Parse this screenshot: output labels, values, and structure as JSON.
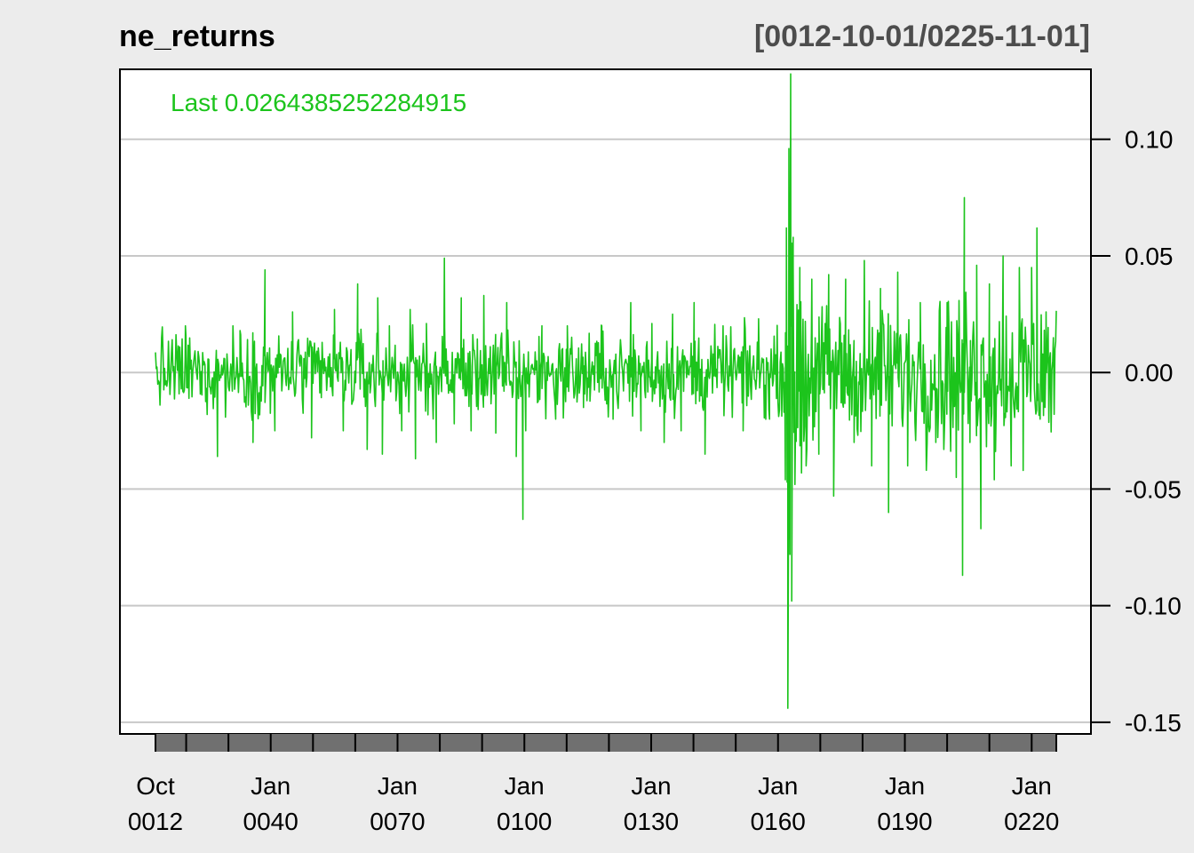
{
  "chart_data": {
    "type": "line",
    "title": "ne_returns",
    "date_range": "[0012-10-01/0225-11-01]",
    "last_label": "Last 0.0264385252284915",
    "series": [
      {
        "name": "ne_returns",
        "color": "#1cc41c"
      }
    ],
    "start_date": "0012-10-01",
    "end_date": "0225-11-01",
    "ylim": [
      -0.155,
      0.13
    ],
    "y_ticks": [
      {
        "value": 0.1,
        "label": "0.10"
      },
      {
        "value": 0.05,
        "label": "0.05"
      },
      {
        "value": 0.0,
        "label": "0.00"
      },
      {
        "value": -0.05,
        "label": "-0.05"
      },
      {
        "value": -0.1,
        "label": "-0.10"
      },
      {
        "value": -0.15,
        "label": "-0.15"
      }
    ],
    "x_ticks": [
      {
        "date": "0012-10-01",
        "line1": "Oct",
        "line2": "0012"
      },
      {
        "date": "0040-01-01",
        "line1": "Jan",
        "line2": "0040"
      },
      {
        "date": "0070-01-01",
        "line1": "Jan",
        "line2": "0070"
      },
      {
        "date": "0100-01-01",
        "line1": "Jan",
        "line2": "0100"
      },
      {
        "date": "0130-01-01",
        "line1": "Jan",
        "line2": "0130"
      },
      {
        "date": "0160-01-01",
        "line1": "Jan",
        "line2": "0160"
      },
      {
        "date": "0190-01-01",
        "line1": "Jan",
        "line2": "0190"
      },
      {
        "date": "0220-01-01",
        "line1": "Jan",
        "line2": "0220"
      }
    ],
    "spikes": [
      {
        "date": "0019-11-01",
        "value": 0.02
      },
      {
        "date": "0027-06-01",
        "value": -0.036
      },
      {
        "date": "0031-02-01",
        "value": 0.02
      },
      {
        "date": "0032-10-01",
        "value": 0.018
      },
      {
        "date": "0035-11-01",
        "value": -0.03
      },
      {
        "date": "0038-09-01",
        "value": 0.044
      },
      {
        "date": "0041-01-01",
        "value": -0.025
      },
      {
        "date": "0045-03-01",
        "value": 0.026
      },
      {
        "date": "0049-09-01",
        "value": -0.028
      },
      {
        "date": "0055-02-01",
        "value": 0.027
      },
      {
        "date": "0057-03-01",
        "value": -0.025
      },
      {
        "date": "0060-08-01",
        "value": 0.038
      },
      {
        "date": "0062-11-01",
        "value": -0.033
      },
      {
        "date": "0065-05-01",
        "value": 0.032
      },
      {
        "date": "0066-06-01",
        "value": -0.035
      },
      {
        "date": "0068-02-01",
        "value": 0.02
      },
      {
        "date": "0071-01-01",
        "value": -0.025
      },
      {
        "date": "0073-01-01",
        "value": 0.027
      },
      {
        "date": "0074-04-01",
        "value": -0.037
      },
      {
        "date": "0076-11-01",
        "value": 0.021
      },
      {
        "date": "0079-03-01",
        "value": -0.03
      },
      {
        "date": "0081-02-01",
        "value": 0.049
      },
      {
        "date": "0083-06-01",
        "value": -0.022
      },
      {
        "date": "0085-02-01",
        "value": 0.032
      },
      {
        "date": "0087-06-01",
        "value": -0.025
      },
      {
        "date": "0090-06-01",
        "value": 0.033
      },
      {
        "date": "0093-04-01",
        "value": -0.026
      },
      {
        "date": "0095-11-01",
        "value": 0.03
      },
      {
        "date": "0098-02-01",
        "value": -0.036
      },
      {
        "date": "0099-09-01",
        "value": -0.063
      },
      {
        "date": "0100-05-01",
        "value": -0.025
      },
      {
        "date": "0104-03-01",
        "value": 0.02
      },
      {
        "date": "0107-06-01",
        "value": -0.02
      },
      {
        "date": "0110-03-01",
        "value": 0.02
      },
      {
        "date": "0114-01-01",
        "value": -0.015
      },
      {
        "date": "0118-05-01",
        "value": 0.02
      },
      {
        "date": "0121-01-01",
        "value": -0.02
      },
      {
        "date": "0125-03-01",
        "value": 0.03
      },
      {
        "date": "0127-08-01",
        "value": -0.025
      },
      {
        "date": "0130-03-01",
        "value": 0.021
      },
      {
        "date": "0133-02-01",
        "value": -0.03
      },
      {
        "date": "0135-02-01",
        "value": 0.025
      },
      {
        "date": "0137-02-01",
        "value": -0.025
      },
      {
        "date": "0140-03-01",
        "value": 0.03
      },
      {
        "date": "0142-10-01",
        "value": -0.035
      },
      {
        "date": "0147-01-01",
        "value": 0.02
      },
      {
        "date": "0151-10-01",
        "value": -0.025
      },
      {
        "date": "0155-06-01",
        "value": 0.023
      },
      {
        "date": "0158-01-01",
        "value": -0.02
      },
      {
        "date": "0161-10-01",
        "value": -0.046
      },
      {
        "date": "0162-01-01",
        "value": 0.062
      },
      {
        "date": "0162-05-01",
        "value": -0.144
      },
      {
        "date": "0162-08-01",
        "value": 0.096
      },
      {
        "date": "0162-11-01",
        "value": -0.078
      },
      {
        "date": "0163-01-01",
        "value": 0.128
      },
      {
        "date": "0163-04-01",
        "value": -0.098
      },
      {
        "date": "0163-08-01",
        "value": 0.058
      },
      {
        "date": "0164-01-01",
        "value": -0.048
      },
      {
        "date": "0165-03-01",
        "value": 0.045
      },
      {
        "date": "0166-09-01",
        "value": -0.04
      },
      {
        "date": "0168-01-01",
        "value": 0.04
      },
      {
        "date": "0169-09-01",
        "value": -0.035
      },
      {
        "date": "0172-01-01",
        "value": 0.042
      },
      {
        "date": "0173-03-01",
        "value": -0.053
      },
      {
        "date": "0176-01-01",
        "value": 0.04
      },
      {
        "date": "0178-01-01",
        "value": -0.03
      },
      {
        "date": "0180-06-01",
        "value": 0.048
      },
      {
        "date": "0182-03-01",
        "value": -0.04
      },
      {
        "date": "0184-04-01",
        "value": 0.036
      },
      {
        "date": "0186-03-01",
        "value": -0.06
      },
      {
        "date": "0188-05-01",
        "value": 0.043
      },
      {
        "date": "0190-09-01",
        "value": -0.04
      },
      {
        "date": "0193-09-01",
        "value": 0.03
      },
      {
        "date": "0197-05-01",
        "value": -0.03
      },
      {
        "date": "0200-01-01",
        "value": 0.03
      },
      {
        "date": "0202-03-01",
        "value": -0.045
      },
      {
        "date": "0203-09-01",
        "value": -0.087
      },
      {
        "date": "0204-02-01",
        "value": 0.075
      },
      {
        "date": "0205-06-01",
        "value": -0.03
      },
      {
        "date": "0207-01-01",
        "value": 0.046
      },
      {
        "date": "0208-01-01",
        "value": -0.067
      },
      {
        "date": "0210-01-01",
        "value": 0.038
      },
      {
        "date": "0211-03-01",
        "value": -0.046
      },
      {
        "date": "0213-04-01",
        "value": 0.05
      },
      {
        "date": "0215-03-01",
        "value": -0.04
      },
      {
        "date": "0217-02-01",
        "value": 0.045
      },
      {
        "date": "0218-01-01",
        "value": -0.042
      },
      {
        "date": "0220-01-01",
        "value": 0.045
      },
      {
        "date": "0221-04-01",
        "value": 0.062
      },
      {
        "date": "0222-01-01",
        "value": -0.02
      },
      {
        "date": "0223-06-01",
        "value": 0.026
      }
    ],
    "grid": true
  }
}
